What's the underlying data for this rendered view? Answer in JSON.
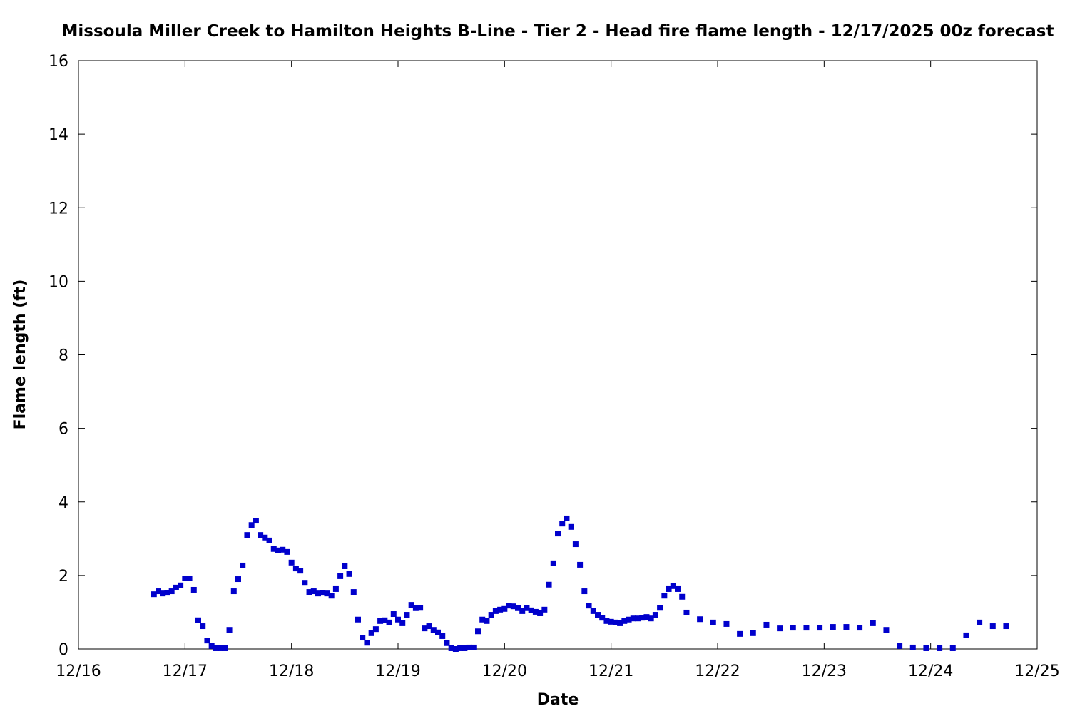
{
  "chart_data": {
    "type": "scatter",
    "title": "Missoula Miller Creek to Hamilton Heights B-Line - Tier 2 - Head fire flame length - 12/17/2025 00z forecast",
    "xlabel": "Date",
    "ylabel": "Flame length (ft)",
    "xlim": [
      0,
      216
    ],
    "xticks": [
      {
        "value": 0,
        "label": "12/16"
      },
      {
        "value": 24,
        "label": "12/17"
      },
      {
        "value": 48,
        "label": "12/18"
      },
      {
        "value": 72,
        "label": "12/19"
      },
      {
        "value": 96,
        "label": "12/20"
      },
      {
        "value": 120,
        "label": "12/21"
      },
      {
        "value": 144,
        "label": "12/22"
      },
      {
        "value": 168,
        "label": "12/23"
      },
      {
        "value": 192,
        "label": "12/24"
      },
      {
        "value": 216,
        "label": "12/25"
      }
    ],
    "ylim": [
      0,
      16
    ],
    "yticks": [
      0,
      2,
      4,
      6,
      8,
      10,
      12,
      14,
      16
    ],
    "grid": false,
    "color": "#0000cc",
    "x": [
      17,
      18,
      19,
      20,
      21,
      22,
      23,
      24,
      25,
      26,
      27,
      28,
      29,
      30,
      31,
      32,
      33,
      34,
      35,
      36,
      37,
      38,
      39,
      40,
      41,
      42,
      43,
      44,
      45,
      46,
      47,
      48,
      49,
      50,
      51,
      52,
      53,
      54,
      55,
      56,
      57,
      58,
      59,
      60,
      61,
      62,
      63,
      64,
      65,
      66,
      67,
      68,
      69,
      70,
      71,
      72,
      73,
      74,
      75,
      76,
      77,
      78,
      79,
      80,
      81,
      82,
      83,
      84,
      85,
      86,
      87,
      88,
      89,
      90,
      91,
      92,
      93,
      94,
      95,
      96,
      97,
      98,
      99,
      100,
      101,
      102,
      103,
      104,
      105,
      106,
      107,
      108,
      109,
      110,
      111,
      112,
      113,
      114,
      115,
      116,
      117,
      118,
      119,
      120,
      121,
      122,
      123,
      124,
      125,
      126,
      127,
      128,
      129,
      130,
      131,
      132,
      133,
      134,
      135,
      136,
      137,
      140,
      143,
      146,
      149,
      152,
      155,
      158,
      161,
      164,
      167,
      170,
      173,
      176,
      179,
      182,
      185,
      188,
      191,
      194,
      197,
      200,
      203,
      206,
      209
    ],
    "values": [
      1.49,
      1.57,
      1.51,
      1.53,
      1.57,
      1.67,
      1.73,
      1.92,
      1.92,
      1.61,
      0.78,
      0.62,
      0.23,
      0.08,
      0.02,
      0.02,
      0.02,
      0.52,
      1.57,
      1.9,
      2.27,
      3.1,
      3.37,
      3.49,
      3.1,
      3.03,
      2.95,
      2.72,
      2.68,
      2.7,
      2.64,
      2.35,
      2.19,
      2.13,
      1.8,
      1.55,
      1.57,
      1.51,
      1.53,
      1.51,
      1.45,
      1.63,
      1.98,
      2.25,
      2.04,
      1.55,
      0.8,
      0.31,
      0.17,
      0.43,
      0.54,
      0.76,
      0.78,
      0.72,
      0.95,
      0.8,
      0.7,
      0.93,
      1.2,
      1.11,
      1.12,
      0.56,
      0.62,
      0.52,
      0.45,
      0.35,
      0.16,
      0.02,
      0,
      0.02,
      0.02,
      0.04,
      0.04,
      0.48,
      0.8,
      0.76,
      0.93,
      1.03,
      1.07,
      1.09,
      1.18,
      1.16,
      1.11,
      1.03,
      1.11,
      1.05,
      1.01,
      0.97,
      1.07,
      1.75,
      2.33,
      3.14,
      3.41,
      3.55,
      3.32,
      2.85,
      2.29,
      1.57,
      1.18,
      1.03,
      0.93,
      0.85,
      0.76,
      0.74,
      0.72,
      0.7,
      0.76,
      0.8,
      0.83,
      0.83,
      0.85,
      0.87,
      0.83,
      0.93,
      1.12,
      1.45,
      1.63,
      1.71,
      1.63,
      1.42,
      0.99,
      0.81,
      0.72,
      0.68,
      0.41,
      0.43,
      0.66,
      0.56,
      0.58,
      0.58,
      0.58,
      0.6,
      0.6,
      0.58,
      0.7,
      0.52,
      0.08,
      0.04,
      0.02,
      0.02,
      0.02,
      0.37,
      0.72,
      0.62,
      0.62
    ]
  }
}
